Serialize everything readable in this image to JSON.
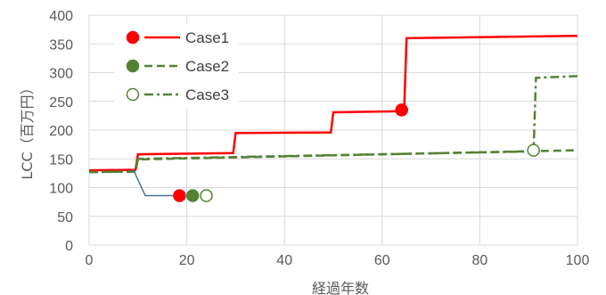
{
  "chart_data": {
    "type": "line",
    "xlabel": "経過年数",
    "ylabel": "LCC（百万円）",
    "xlim": [
      0,
      100
    ],
    "ylim": [
      0,
      400
    ],
    "xticks": [
      0,
      20,
      40,
      60,
      80,
      100
    ],
    "yticks": [
      0,
      50,
      100,
      150,
      200,
      250,
      300,
      350,
      400
    ],
    "grid": "vertical and horizontal major gridlines",
    "legend_position": "top-left",
    "series": [
      {
        "name": "Case1",
        "color": "#ff0000",
        "line_style": "solid",
        "marker": "filled-circle",
        "x": [
          0,
          9.5,
          10,
          29.5,
          30,
          49.5,
          50,
          64.5,
          65,
          100
        ],
        "y": [
          130,
          131,
          158,
          160,
          195,
          196,
          231,
          233,
          360,
          364
        ],
        "marker_point": [
          64,
          235
        ]
      },
      {
        "name": "Case2",
        "color": "#548235",
        "line_style": "dashed",
        "marker": "filled-circle",
        "x": [
          0,
          9.5,
          10,
          100
        ],
        "y": [
          127,
          128,
          149,
          165
        ]
      },
      {
        "name": "Case3",
        "color": "#548235",
        "line_style": "dash-dot",
        "marker": "open-circle",
        "x": [
          0,
          9.5,
          10,
          91,
          91.5,
          100
        ],
        "y": [
          127,
          128,
          150,
          163,
          291,
          294
        ],
        "marker_point": [
          91,
          165
        ]
      },
      {
        "name": "",
        "color": "#44719f",
        "line_style": "solid",
        "marker": "none",
        "x": [
          9,
          11.5,
          17.5
        ],
        "y": [
          132,
          86,
          86
        ]
      }
    ],
    "standalone_markers": [
      {
        "series": "Case1",
        "x": 18.5,
        "y": 86
      },
      {
        "series": "Case2",
        "x": 21.2,
        "y": 86
      },
      {
        "series": "Case3",
        "x": 24,
        "y": 86
      }
    ]
  }
}
